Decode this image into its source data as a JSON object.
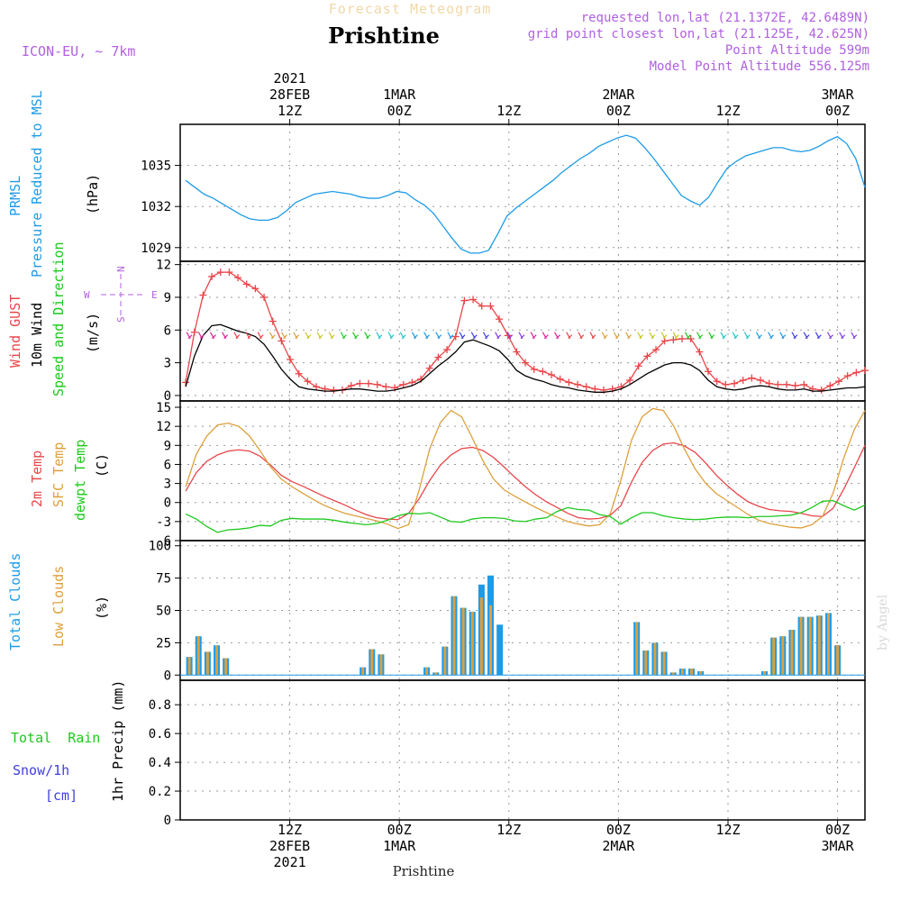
{
  "header": {
    "title_faded": "Forecast Meteogram",
    "station": "Prishtine",
    "model": "ICON-EU, ~ 7km",
    "requested": "requested lon,lat (21.1372E, 42.6489N)",
    "grid": "grid point closest lon,lat (21.125E, 42.625N)",
    "point_alt": "Point Altitude 599m",
    "model_alt": "Model Point Altitude 556.125m"
  },
  "watermark": "by Angel",
  "footer_station": "Prishtine",
  "time_axis": {
    "top": [
      {
        "x": 12,
        "lines": [
          "2021",
          "28FEB",
          "12Z"
        ]
      },
      {
        "x": 24,
        "lines": [
          "1MAR",
          "00Z"
        ]
      },
      {
        "x": 36,
        "lines": [
          "12Z"
        ]
      },
      {
        "x": 48,
        "lines": [
          "2MAR",
          "00Z"
        ]
      },
      {
        "x": 60,
        "lines": [
          "12Z"
        ]
      },
      {
        "x": 72,
        "lines": [
          "3MAR",
          "00Z"
        ]
      }
    ],
    "bottom": [
      {
        "x": 12,
        "lines": [
          "12Z",
          "28FEB",
          "2021"
        ]
      },
      {
        "x": 24,
        "lines": [
          "00Z",
          "1MAR"
        ]
      },
      {
        "x": 36,
        "lines": [
          "12Z"
        ]
      },
      {
        "x": 48,
        "lines": [
          "00Z",
          "2MAR"
        ]
      },
      {
        "x": 60,
        "lines": [
          "12Z"
        ]
      },
      {
        "x": 72,
        "lines": [
          "00Z",
          "3MAR"
        ]
      }
    ]
  },
  "colors": {
    "pressure": "#1e9be6",
    "gust": "#e8464a",
    "wind": "#000000",
    "temp2m": "#e8464a",
    "sfc": "#dca03c",
    "dewpt": "#1ec81e",
    "total_clouds": "#1e9be6",
    "low_clouds": "#dca03c",
    "purple": "#b060e0",
    "green_label": "#1ec81e",
    "blue_label": "#4040e0"
  },
  "chart_data": [
    {
      "type": "line",
      "panel": "pressure",
      "ylabel_lines": [
        "PRMSL",
        "Pressure Reduced to MSL"
      ],
      "unit": "(hPa)",
      "ylim": [
        1028,
        1038
      ],
      "yticks": [
        1029,
        1032,
        1035
      ],
      "x_range": [
        0,
        75
      ],
      "series": [
        {
          "name": "PRMSL",
          "values": [
            1033.9,
            1033.4,
            1032.9,
            1032.6,
            1032.2,
            1031.8,
            1031.4,
            1031.1,
            1031.0,
            1031.0,
            1031.2,
            1031.7,
            1032.3,
            1032.6,
            1032.9,
            1033.0,
            1033.1,
            1033.0,
            1032.9,
            1032.7,
            1032.6,
            1032.6,
            1032.8,
            1033.1,
            1033.0,
            1032.5,
            1032.1,
            1031.5,
            1030.6,
            1029.7,
            1028.9,
            1028.6,
            1028.6,
            1028.8,
            1030.0,
            1031.3,
            1031.9,
            1032.4,
            1032.9,
            1033.4,
            1033.9,
            1034.5,
            1035.0,
            1035.5,
            1035.9,
            1036.4,
            1036.7,
            1037.0,
            1037.2,
            1037.0,
            1036.3,
            1035.5,
            1034.6,
            1033.7,
            1032.8,
            1032.4,
            1032.1,
            1032.7,
            1033.8,
            1034.8,
            1035.3,
            1035.7,
            1035.9,
            1036.1,
            1036.3,
            1036.3,
            1036.1,
            1036.0,
            1036.1,
            1036.4,
            1036.8,
            1037.1,
            1036.6,
            1035.5,
            1033.4
          ]
        }
      ]
    },
    {
      "type": "line",
      "panel": "wind",
      "ylabel_lines": [
        "Wind GUST",
        "10m Wind",
        "Speed and Direction"
      ],
      "unit": "(m/s)",
      "compass": {
        "n": "N",
        "s": "S",
        "w": "W",
        "e": "E"
      },
      "ylim": [
        -0.5,
        12.3
      ],
      "yticks": [
        0,
        3,
        6,
        9,
        12
      ],
      "x_range": [
        0,
        75
      ],
      "series": [
        {
          "name": "Wind GUST",
          "values": [
            1.2,
            5.8,
            9.2,
            10.9,
            11.3,
            11.3,
            10.8,
            10.2,
            9.8,
            9.0,
            6.8,
            5.0,
            3.3,
            2.0,
            1.3,
            0.8,
            0.6,
            0.5,
            0.5,
            0.9,
            1.1,
            1.1,
            1.0,
            0.8,
            0.7,
            1.0,
            1.2,
            1.5,
            2.5,
            3.5,
            4.2,
            5.4,
            8.7,
            8.8,
            8.2,
            8.2,
            7.0,
            5.5,
            4.0,
            3.0,
            2.4,
            2.2,
            1.9,
            1.5,
            1.2,
            1.0,
            0.8,
            0.6,
            0.5,
            0.6,
            0.8,
            1.4,
            2.7,
            3.6,
            4.2,
            5.0,
            5.1,
            5.2,
            5.2,
            4.0,
            2.2,
            1.3,
            1.0,
            1.1,
            1.4,
            1.6,
            1.4,
            1.1,
            1.0,
            1.0,
            0.9,
            1.0,
            0.6,
            0.5,
            0.9,
            1.3,
            1.8,
            2.1,
            2.3
          ]
        },
        {
          "name": "10m Wind",
          "values": [
            0.8,
            3.6,
            5.5,
            6.4,
            6.5,
            6.2,
            5.9,
            5.7,
            5.4,
            4.7,
            3.6,
            2.4,
            1.5,
            0.8,
            0.6,
            0.5,
            0.4,
            0.4,
            0.5,
            0.6,
            0.6,
            0.5,
            0.4,
            0.4,
            0.5,
            0.7,
            0.9,
            1.3,
            2.0,
            2.7,
            3.3,
            4.0,
            4.9,
            5.1,
            4.8,
            4.5,
            4.1,
            3.3,
            2.3,
            1.8,
            1.5,
            1.3,
            1.0,
            0.8,
            0.7,
            0.5,
            0.4,
            0.3,
            0.3,
            0.4,
            0.6,
            1.0,
            1.5,
            2.0,
            2.4,
            2.8,
            3.0,
            3.0,
            2.8,
            2.3,
            1.4,
            0.8,
            0.6,
            0.5,
            0.6,
            0.8,
            0.9,
            0.8,
            0.6,
            0.5,
            0.5,
            0.6,
            0.4,
            0.4,
            0.5,
            0.6,
            0.7,
            0.7,
            0.8
          ]
        }
      ],
      "barbs": {
        "y": 5.8,
        "start": 1,
        "end": 75,
        "step": 1.3
      }
    },
    {
      "type": "line",
      "panel": "temperature",
      "ylabel_lines": [
        "2m Temp",
        "SFC Temp",
        "dewpt Temp"
      ],
      "unit": "(C)",
      "ylim": [
        -6,
        16
      ],
      "yticks": [
        -6,
        -3,
        0,
        3,
        6,
        9,
        12,
        15
      ],
      "x_range": [
        0,
        75
      ],
      "series": [
        {
          "name": "2m Temp",
          "values": [
            1.8,
            4.7,
            6.5,
            7.5,
            8.1,
            8.3,
            8.1,
            7.3,
            5.9,
            4.3,
            3.3,
            2.6,
            1.8,
            1.0,
            0.3,
            -0.4,
            -1.2,
            -1.9,
            -2.4,
            -2.6,
            -2.7,
            -1.7,
            0.6,
            3.5,
            5.9,
            7.5,
            8.5,
            8.7,
            8.2,
            7.1,
            5.6,
            4.0,
            2.5,
            1.2,
            0.1,
            -0.8,
            -1.7,
            -2.4,
            -2.6,
            -2.5,
            -2.0,
            -0.5,
            3.2,
            6.3,
            8.2,
            9.2,
            9.4,
            8.9,
            7.9,
            6.2,
            4.3,
            2.7,
            1.3,
            0.1,
            -0.6,
            -1.1,
            -1.3,
            -1.4,
            -1.7,
            -2.1,
            -2.2,
            -0.9,
            2.1,
            5.5,
            9.0
          ]
        },
        {
          "name": "SFC Temp",
          "values": [
            2.5,
            7.6,
            10.5,
            12.2,
            12.5,
            12.0,
            10.5,
            8.2,
            5.6,
            3.7,
            2.5,
            1.5,
            0.5,
            -0.4,
            -1.1,
            -1.7,
            -2.1,
            -2.5,
            -2.9,
            -3.4,
            -4.1,
            -3.5,
            2.0,
            8.5,
            12.6,
            14.5,
            13.5,
            10.2,
            6.6,
            3.7,
            2.0,
            1.0,
            0.1,
            -0.8,
            -1.6,
            -2.3,
            -3.0,
            -3.4,
            -3.7,
            -3.5,
            -1.8,
            3.5,
            9.8,
            13.5,
            14.8,
            14.5,
            12.0,
            8.4,
            5.3,
            3.0,
            1.4,
            0.3,
            -0.8,
            -1.9,
            -2.8,
            -3.3,
            -3.6,
            -3.9,
            -4.0,
            -3.5,
            -2.2,
            1.5,
            7.0,
            11.5,
            14.5
          ]
        },
        {
          "name": "dewpt Temp",
          "values": [
            -1.8,
            -2.6,
            -3.8,
            -4.7,
            -4.3,
            -4.2,
            -4.0,
            -3.6,
            -3.7,
            -2.8,
            -2.5,
            -2.6,
            -2.6,
            -2.6,
            -2.8,
            -3.1,
            -3.3,
            -3.5,
            -3.3,
            -2.8,
            -2.1,
            -1.7,
            -1.8,
            -1.6,
            -2.3,
            -3.0,
            -3.1,
            -2.6,
            -2.4,
            -2.4,
            -2.5,
            -2.9,
            -3.0,
            -2.6,
            -2.4,
            -1.4,
            -0.8,
            -1.1,
            -1.2,
            -1.9,
            -2.2,
            -3.4,
            -2.4,
            -1.6,
            -1.6,
            -2.1,
            -2.4,
            -2.6,
            -2.7,
            -2.6,
            -2.4,
            -2.3,
            -2.3,
            -2.4,
            -2.2,
            -2.2,
            -2.1,
            -2.0,
            -1.6,
            -0.8,
            0.2,
            0.3,
            -0.5,
            -1.2,
            -0.4
          ]
        }
      ]
    },
    {
      "type": "bar",
      "panel": "clouds",
      "ylabel_lines": [
        "Total Clouds",
        "Low Clouds"
      ],
      "unit": "(%)",
      "ylim": [
        -4,
        104
      ],
      "yticks": [
        0,
        25,
        50,
        75,
        100
      ],
      "x_range": [
        0,
        75
      ],
      "x": [
        1,
        2,
        3,
        4,
        5,
        20,
        21,
        22,
        27,
        28,
        29,
        30,
        31,
        32,
        33,
        34,
        35,
        50,
        51,
        52,
        53,
        54,
        55,
        56,
        57,
        64,
        65,
        66,
        67,
        68,
        69,
        70,
        71,
        72,
        73,
        74
      ],
      "series": [
        {
          "name": "Total Clouds",
          "values": [
            14,
            30,
            18,
            23,
            13,
            6,
            20,
            16,
            6,
            2,
            22,
            61,
            52,
            49,
            70,
            77,
            39,
            41,
            19,
            25,
            18,
            2,
            5,
            5,
            3,
            3,
            29,
            30,
            35,
            45,
            45,
            46,
            48,
            23,
            0,
            0
          ]
        },
        {
          "name": "Low Clouds",
          "values": [
            14,
            30,
            18,
            23,
            13,
            6,
            20,
            16,
            6,
            2,
            22,
            61,
            52,
            49,
            60,
            54,
            0,
            41,
            19,
            25,
            18,
            2,
            5,
            5,
            3,
            3,
            29,
            30,
            35,
            45,
            45,
            46,
            48,
            23,
            0,
            0
          ]
        }
      ]
    },
    {
      "type": "bar",
      "panel": "precip",
      "left_labels": {
        "total_rain": "Total  Rain",
        "snow": "Snow/1h",
        "snow_unit": "[cm]"
      },
      "ylabel": "1hr Precip (mm)",
      "ylim": [
        0,
        0.97
      ],
      "yticks": [
        0,
        0.2,
        0.4,
        0.6,
        0.8
      ],
      "x_range": [
        0,
        75
      ],
      "series": [
        {
          "name": "Total Rain",
          "values": []
        }
      ]
    }
  ]
}
